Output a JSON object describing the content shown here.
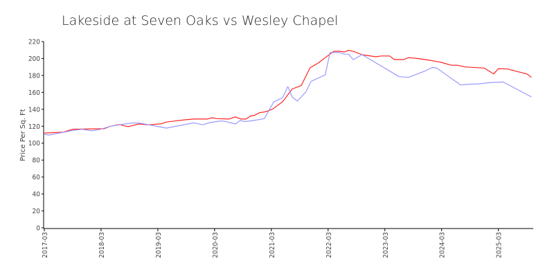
{
  "chart_data": {
    "type": "line",
    "title": "Lakeside at Seven Oaks vs Wesley Chapel",
    "xlabel": "",
    "ylabel": "Price Per Sq. Ft",
    "x_unit": "months since 2017-03",
    "xlim": [
      0,
      103
    ],
    "ylim": [
      0,
      220
    ],
    "yticks": [
      0,
      20,
      40,
      60,
      80,
      100,
      120,
      140,
      160,
      180,
      200,
      220
    ],
    "xticks": [
      {
        "m": 0,
        "label": "2017-03"
      },
      {
        "m": 12,
        "label": "2018-03"
      },
      {
        "m": 24,
        "label": "2019-03"
      },
      {
        "m": 36,
        "label": "2020-03"
      },
      {
        "m": 48,
        "label": "2021-03"
      },
      {
        "m": 60,
        "label": "2022-03"
      },
      {
        "m": 72,
        "label": "2023-03"
      },
      {
        "m": 84,
        "label": "2024-03"
      },
      {
        "m": 96,
        "label": "2025-03"
      }
    ],
    "grid": false,
    "series": [
      {
        "name": "Lakeside at Seven Oaks",
        "color": "#ff2020",
        "points": [
          [
            0,
            112
          ],
          [
            4,
            113
          ],
          [
            6,
            116.5
          ],
          [
            12.6,
            117
          ],
          [
            14,
            120
          ],
          [
            15.8,
            122
          ],
          [
            17.7,
            119.5
          ],
          [
            20,
            122.7
          ],
          [
            22,
            121.6
          ],
          [
            24.8,
            123
          ],
          [
            25.8,
            125
          ],
          [
            29.7,
            127.6
          ],
          [
            31.6,
            128.5
          ],
          [
            34.5,
            128.5
          ],
          [
            35.5,
            130
          ],
          [
            36.5,
            129
          ],
          [
            39,
            128.5
          ],
          [
            40.4,
            131
          ],
          [
            41.6,
            128.5
          ],
          [
            42.6,
            128.5
          ],
          [
            43.6,
            132
          ],
          [
            44.5,
            133
          ],
          [
            45.5,
            136
          ],
          [
            46.7,
            137
          ],
          [
            48.2,
            140
          ],
          [
            50.4,
            149
          ],
          [
            52.4,
            164
          ],
          [
            54.3,
            168
          ],
          [
            56.2,
            189
          ],
          [
            58,
            195
          ],
          [
            59.4,
            201
          ],
          [
            61.2,
            208.5
          ],
          [
            62.4,
            208.5
          ],
          [
            63.5,
            207.7
          ],
          [
            64.3,
            209.6
          ],
          [
            65.3,
            208.5
          ],
          [
            67.2,
            204.5
          ],
          [
            70.1,
            202
          ],
          [
            71.2,
            203
          ],
          [
            73,
            203
          ],
          [
            74,
            198.7
          ],
          [
            76,
            198.7
          ],
          [
            77,
            201
          ],
          [
            79,
            200
          ],
          [
            81.4,
            198
          ],
          [
            83.9,
            195.5
          ],
          [
            86,
            192
          ],
          [
            87.3,
            192
          ],
          [
            89,
            190
          ],
          [
            93,
            188.7
          ],
          [
            95,
            181.8
          ],
          [
            96,
            188
          ],
          [
            98,
            187.5
          ],
          [
            100,
            184.6
          ],
          [
            102,
            181.8
          ],
          [
            103,
            177.7
          ]
        ]
      },
      {
        "name": "Wesley Chapel",
        "color": "#9999ff",
        "points": [
          [
            0,
            110.4
          ],
          [
            1,
            109.6
          ],
          [
            6,
            115
          ],
          [
            8,
            116.4
          ],
          [
            10,
            114.6
          ],
          [
            11.6,
            116
          ],
          [
            14,
            120
          ],
          [
            17,
            122.7
          ],
          [
            19,
            124
          ],
          [
            20.4,
            123.5
          ],
          [
            25.8,
            117.8
          ],
          [
            31.6,
            124
          ],
          [
            33.5,
            121.7
          ],
          [
            35,
            124.3
          ],
          [
            37,
            126
          ],
          [
            38,
            126
          ],
          [
            40.4,
            122.7
          ],
          [
            41.4,
            126.8
          ],
          [
            42.4,
            125.5
          ],
          [
            44.3,
            126.8
          ],
          [
            46.5,
            129
          ],
          [
            48.5,
            148.6
          ],
          [
            50.4,
            153.8
          ],
          [
            51.5,
            166.8
          ],
          [
            52.4,
            154.6
          ],
          [
            53.5,
            149.7
          ],
          [
            55.3,
            160.6
          ],
          [
            56.4,
            173
          ],
          [
            59.4,
            180.7
          ],
          [
            60.4,
            207
          ],
          [
            62.4,
            207
          ],
          [
            63.4,
            205
          ],
          [
            64.3,
            205
          ],
          [
            65.3,
            198.7
          ],
          [
            67.2,
            204.5
          ],
          [
            75,
            178.5
          ],
          [
            77,
            177.7
          ],
          [
            78.5,
            181
          ],
          [
            80.4,
            185
          ],
          [
            82,
            189.3
          ],
          [
            83,
            188.6
          ],
          [
            88,
            168.8
          ],
          [
            90.2,
            169.7
          ],
          [
            92,
            170
          ],
          [
            94,
            171.4
          ],
          [
            97,
            172.2
          ],
          [
            103,
            154.6
          ]
        ]
      }
    ]
  }
}
